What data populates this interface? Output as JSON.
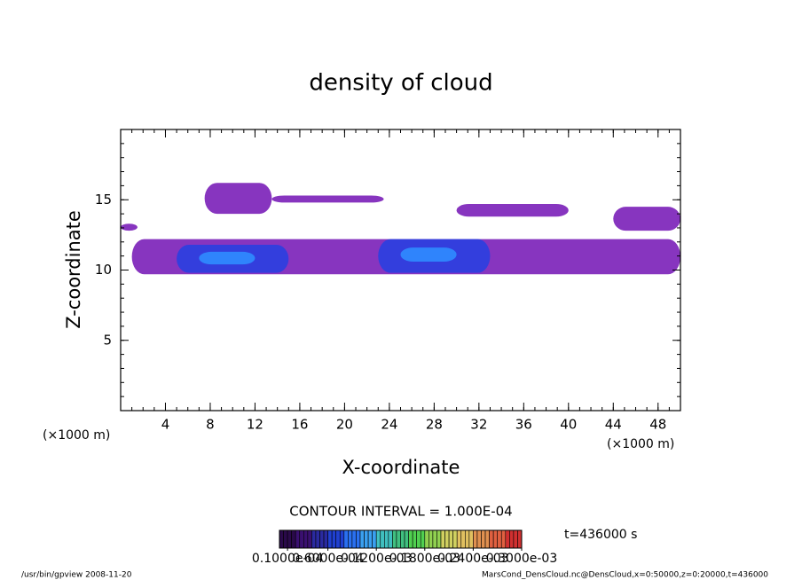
{
  "chart_data": {
    "type": "contour",
    "title": "density of cloud",
    "x_label": "X-coordinate",
    "y_label": "Z-coordinate",
    "x_unit_left": "(×1000 m)",
    "x_unit_right": "(×1000 m)",
    "xlim": [
      0,
      50
    ],
    "ylim": [
      0,
      20
    ],
    "xticks": [
      4,
      8,
      12,
      16,
      20,
      24,
      28,
      32,
      36,
      40,
      44,
      48
    ],
    "yticks": [
      5,
      10,
      15
    ],
    "minor_step": 1,
    "regions": [
      {
        "x": [
          1,
          50
        ],
        "z": [
          9.7,
          12.2
        ],
        "color": "#7a1fb8"
      },
      {
        "x": [
          7.5,
          13.5
        ],
        "z": [
          14.0,
          16.2
        ],
        "color": "#7a1fb8"
      },
      {
        "x": [
          13.5,
          23.5
        ],
        "z": [
          14.8,
          15.3
        ],
        "color": "#7a1fb8"
      },
      {
        "x": [
          30,
          40
        ],
        "z": [
          13.8,
          14.7
        ],
        "color": "#7a1fb8"
      },
      {
        "x": [
          44,
          50
        ],
        "z": [
          12.8,
          14.5
        ],
        "color": "#7a1fb8"
      },
      {
        "x": [
          0,
          1.5
        ],
        "z": [
          12.8,
          13.3
        ],
        "color": "#7a1fb8"
      },
      {
        "x": [
          5,
          15
        ],
        "z": [
          9.8,
          11.8
        ],
        "color": "#2a3fe0"
      },
      {
        "x": [
          23,
          33
        ],
        "z": [
          9.8,
          12.2
        ],
        "color": "#2a3fe0"
      },
      {
        "x": [
          7,
          12
        ],
        "z": [
          10.4,
          11.3
        ],
        "color": "#2f8cff"
      },
      {
        "x": [
          25,
          30
        ],
        "z": [
          10.6,
          11.6
        ],
        "color": "#2f8cff"
      }
    ],
    "contour_interval": "CONTOUR INTERVAL = 1.000E-04",
    "time_label": "t=436000 s",
    "colorbar_colors": [
      "#2a0a4a",
      "#3a1070",
      "#2a2aa0",
      "#2040d0",
      "#2a70f0",
      "#3aa0f0",
      "#40c0c0",
      "#40c080",
      "#50d050",
      "#90d050",
      "#d0d060",
      "#e0c060",
      "#e09050",
      "#e06040",
      "#d03030"
    ],
    "clim": [
      0,
      0.0003
    ],
    "cticks": [
      {
        "value": 1e-05,
        "label": "0.1000e-04"
      },
      {
        "value": 6e-05,
        "label": "0.6000e-04"
      },
      {
        "value": 0.00012,
        "label": "0.1200e-03"
      },
      {
        "value": 0.00018,
        "label": "0.1800e-03"
      },
      {
        "value": 0.00024,
        "label": "0.2400e-03"
      },
      {
        "value": 0.0003,
        "label": "0.3000e-03"
      }
    ],
    "footer_left": "/usr/bin/gpview  2008-11-20",
    "footer_right": "MarsCond_DensCloud.nc@DensCloud,x=0:50000,z=0:20000,t=436000"
  }
}
